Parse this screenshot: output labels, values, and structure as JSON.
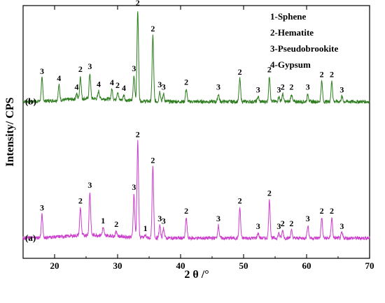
{
  "chart_data": {
    "type": "line",
    "title": "",
    "xlabel": "2 θ /°",
    "ylabel": "Intensity/ CPS",
    "xlim": [
      15,
      70
    ],
    "x_ticks": [
      20,
      30,
      40,
      50,
      60,
      70
    ],
    "grid": false,
    "y_tick_labels": false,
    "legend": {
      "position": "top-right",
      "entries": [
        "1-Sphene",
        "2-Hematite",
        "3-Pseudobrookite",
        "4-Gypsum"
      ]
    },
    "series": [
      {
        "name": "(b)",
        "color": "#2e7d1f",
        "baseline_level": 0.62,
        "peaks": [
          {
            "x": 18.0,
            "h": 0.09,
            "label": "3"
          },
          {
            "x": 20.7,
            "h": 0.06,
            "label": "4"
          },
          {
            "x": 23.5,
            "h": 0.02,
            "label": "4"
          },
          {
            "x": 24.1,
            "h": 0.09,
            "label": "2"
          },
          {
            "x": 25.6,
            "h": 0.1,
            "label": "3"
          },
          {
            "x": 27.0,
            "h": 0.03,
            "label": "4"
          },
          {
            "x": 29.1,
            "h": 0.04,
            "label": "4"
          },
          {
            "x": 30.0,
            "h": 0.03,
            "label": "2"
          },
          {
            "x": 31.0,
            "h": 0.02,
            "label": "4"
          },
          {
            "x": 32.6,
            "h": 0.1,
            "label": "3"
          },
          {
            "x": 33.2,
            "h": 0.36,
            "label": "2"
          },
          {
            "x": 35.6,
            "h": 0.26,
            "label": "2"
          },
          {
            "x": 36.7,
            "h": 0.04,
            "label": "3"
          },
          {
            "x": 37.3,
            "h": 0.03,
            "label": "3"
          },
          {
            "x": 40.9,
            "h": 0.05,
            "label": "2"
          },
          {
            "x": 46.0,
            "h": 0.03,
            "label": "3"
          },
          {
            "x": 49.4,
            "h": 0.09,
            "label": "2"
          },
          {
            "x": 52.3,
            "h": 0.02,
            "label": "3"
          },
          {
            "x": 54.1,
            "h": 0.1,
            "label": "2"
          },
          {
            "x": 55.6,
            "h": 0.02,
            "label": "3"
          },
          {
            "x": 56.2,
            "h": 0.03,
            "label": "2"
          },
          {
            "x": 57.6,
            "h": 0.03,
            "label": "2"
          },
          {
            "x": 60.2,
            "h": 0.03,
            "label": "3"
          },
          {
            "x": 62.4,
            "h": 0.08,
            "label": "2"
          },
          {
            "x": 64.0,
            "h": 0.08,
            "label": "2"
          },
          {
            "x": 65.6,
            "h": 0.02,
            "label": "3"
          }
        ]
      },
      {
        "name": "(a)",
        "color": "#cc3fcc",
        "baseline_level": 0.08,
        "peaks": [
          {
            "x": 18.0,
            "h": 0.09,
            "label": "3"
          },
          {
            "x": 24.1,
            "h": 0.11,
            "label": "2"
          },
          {
            "x": 25.6,
            "h": 0.17,
            "label": "3"
          },
          {
            "x": 27.7,
            "h": 0.03,
            "label": "1"
          },
          {
            "x": 29.8,
            "h": 0.02,
            "label": "2"
          },
          {
            "x": 32.6,
            "h": 0.17,
            "label": "3"
          },
          {
            "x": 33.2,
            "h": 0.38,
            "label": "2"
          },
          {
            "x": 34.4,
            "h": 0.01,
            "label": "1"
          },
          {
            "x": 35.6,
            "h": 0.28,
            "label": "2"
          },
          {
            "x": 36.7,
            "h": 0.05,
            "label": "3"
          },
          {
            "x": 37.3,
            "h": 0.04,
            "label": "3"
          },
          {
            "x": 40.9,
            "h": 0.08,
            "label": "2"
          },
          {
            "x": 46.0,
            "h": 0.05,
            "label": "3"
          },
          {
            "x": 49.4,
            "h": 0.12,
            "label": "2"
          },
          {
            "x": 52.3,
            "h": 0.02,
            "label": "3"
          },
          {
            "x": 54.1,
            "h": 0.15,
            "label": "2"
          },
          {
            "x": 55.6,
            "h": 0.02,
            "label": "3"
          },
          {
            "x": 56.2,
            "h": 0.03,
            "label": "2"
          },
          {
            "x": 57.6,
            "h": 0.03,
            "label": "2"
          },
          {
            "x": 60.2,
            "h": 0.05,
            "label": "3"
          },
          {
            "x": 62.4,
            "h": 0.08,
            "label": "2"
          },
          {
            "x": 64.0,
            "h": 0.08,
            "label": "2"
          },
          {
            "x": 65.6,
            "h": 0.02,
            "label": "3"
          }
        ]
      }
    ]
  }
}
